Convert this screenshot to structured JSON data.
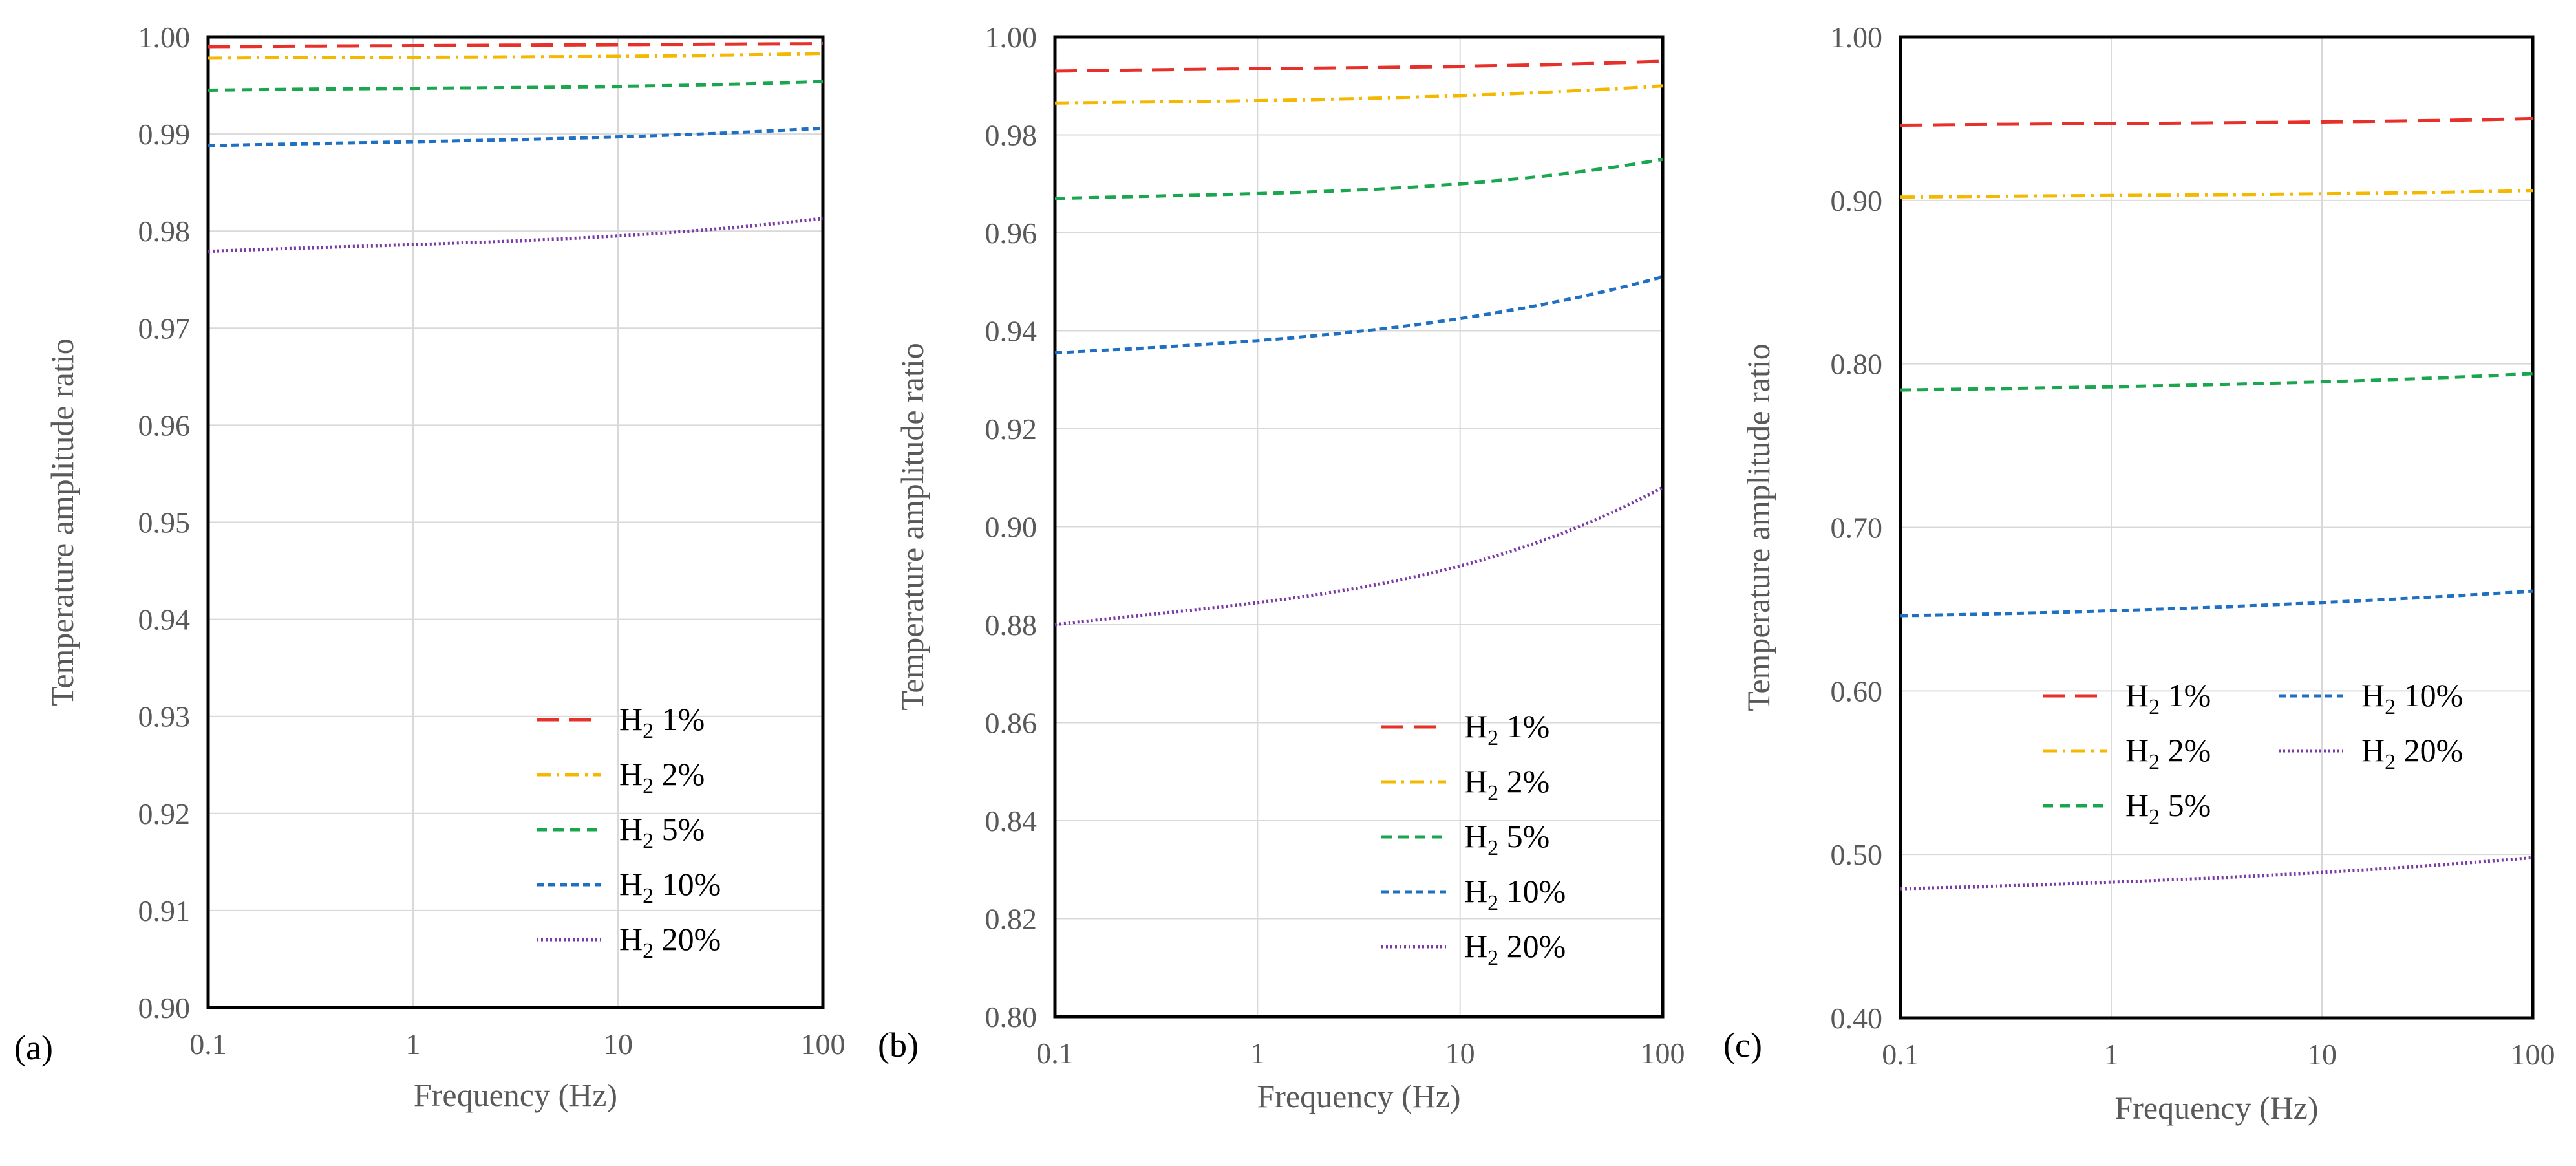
{
  "chart_data": [
    {
      "panel": "(a)",
      "type": "line",
      "xscale": "log",
      "xlim": [
        0.1,
        100
      ],
      "xticks": [
        "0.1",
        "1",
        "10",
        "100"
      ],
      "xlabel": "Frequency (Hz)",
      "ylabel": "Temperature amplitude ratio",
      "ylim": [
        0.9,
        1.0
      ],
      "yticks": [
        "0.90",
        "0.91",
        "0.92",
        "0.93",
        "0.94",
        "0.95",
        "0.96",
        "0.97",
        "0.98",
        "0.99",
        "1.00"
      ],
      "grid": true,
      "legend_position": "bottom-right",
      "legend_columns": 1,
      "x": [
        0.1,
        1,
        10,
        100
      ],
      "series": [
        {
          "name": "1%",
          "color": "#e8302a",
          "dash": "long-dash",
          "values": [
            0.999,
            0.9991,
            0.9992,
            0.9993
          ]
        },
        {
          "name": "2%",
          "color": "#f5b800",
          "dash": "dash-dot",
          "values": [
            0.9978,
            0.9979,
            0.998,
            0.9983
          ]
        },
        {
          "name": "5%",
          "color": "#1aa64e",
          "dash": "dash",
          "values": [
            0.9945,
            0.9947,
            0.9949,
            0.9954
          ]
        },
        {
          "name": "10%",
          "color": "#1f6fc2",
          "dash": "short-dash",
          "values": [
            0.9888,
            0.9892,
            0.9897,
            0.9906
          ]
        },
        {
          "name": "20%",
          "color": "#7a3aa6",
          "dash": "dot",
          "values": [
            0.9779,
            0.9786,
            0.9795,
            0.9813
          ]
        }
      ]
    },
    {
      "panel": "(b)",
      "type": "line",
      "xscale": "log",
      "xlim": [
        0.1,
        100
      ],
      "xticks": [
        "0.1",
        "1",
        "10",
        "100"
      ],
      "xlabel": "Frequency (Hz)",
      "ylabel": "Temperature amplitude ratio",
      "ylim": [
        0.8,
        1.0
      ],
      "yticks": [
        "0.80",
        "0.82",
        "0.84",
        "0.86",
        "0.88",
        "0.90",
        "0.92",
        "0.94",
        "0.96",
        "0.98",
        "1.00"
      ],
      "grid": true,
      "legend_position": "bottom-right",
      "legend_columns": 1,
      "x": [
        0.1,
        1,
        10,
        100
      ],
      "series": [
        {
          "name": "1%",
          "color": "#e8302a",
          "dash": "long-dash",
          "values": [
            0.993,
            0.9935,
            0.994,
            0.995
          ]
        },
        {
          "name": "2%",
          "color": "#f5b800",
          "dash": "dash-dot",
          "values": [
            0.9865,
            0.987,
            0.988,
            0.99
          ]
        },
        {
          "name": "5%",
          "color": "#1aa64e",
          "dash": "dash",
          "values": [
            0.967,
            0.968,
            0.97,
            0.975
          ]
        },
        {
          "name": "10%",
          "color": "#1f6fc2",
          "dash": "short-dash",
          "values": [
            0.9355,
            0.938,
            0.9425,
            0.951
          ]
        },
        {
          "name": "20%",
          "color": "#7a3aa6",
          "dash": "dot",
          "values": [
            0.88,
            0.8845,
            0.892,
            0.908
          ]
        }
      ]
    },
    {
      "panel": "(c)",
      "type": "line",
      "xscale": "log",
      "xlim": [
        0.1,
        100
      ],
      "xticks": [
        "0.1",
        "1",
        "10",
        "100"
      ],
      "xlabel": "Frequency (Hz)",
      "ylabel": "Temperature amplitude ratio",
      "ylim": [
        0.4,
        1.0
      ],
      "yticks": [
        "0.40",
        "0.50",
        "0.60",
        "0.70",
        "0.80",
        "0.90",
        "1.00"
      ],
      "grid": true,
      "legend_position": "center-right",
      "legend_columns": 2,
      "x": [
        0.1,
        1,
        10,
        100
      ],
      "series": [
        {
          "name": "1%",
          "color": "#e8302a",
          "dash": "long-dash",
          "values": [
            0.946,
            0.947,
            0.948,
            0.95
          ]
        },
        {
          "name": "2%",
          "color": "#f5b800",
          "dash": "dash-dot",
          "values": [
            0.902,
            0.903,
            0.904,
            0.906
          ]
        },
        {
          "name": "5%",
          "color": "#1aa64e",
          "dash": "dash",
          "values": [
            0.784,
            0.786,
            0.789,
            0.794
          ]
        },
        {
          "name": "10%",
          "color": "#1f6fc2",
          "dash": "short-dash",
          "values": [
            0.646,
            0.649,
            0.654,
            0.661
          ]
        },
        {
          "name": "20%",
          "color": "#7a3aa6",
          "dash": "dot",
          "values": [
            0.479,
            0.483,
            0.489,
            0.498
          ]
        }
      ]
    }
  ],
  "legend_prefix": "H",
  "legend_subscript": "2",
  "colors": {
    "axis": "#000000",
    "grid": "#d9d9d9",
    "tick_text": "#595959",
    "panel_label": "#000000"
  }
}
